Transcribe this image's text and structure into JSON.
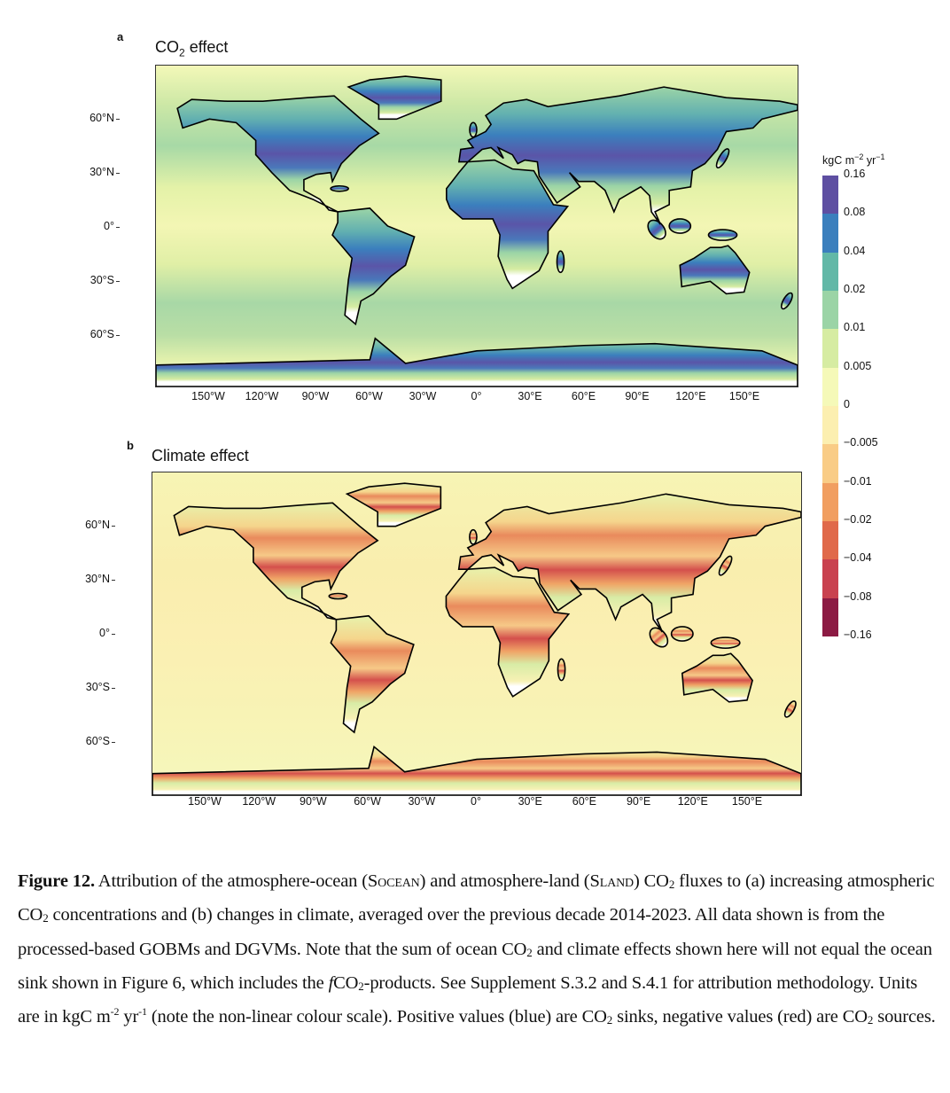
{
  "panel_a": {
    "letter": "a",
    "title_main": "CO",
    "title_sub": "2",
    "title_rest": " effect"
  },
  "panel_b": {
    "letter": "b",
    "title": "Climate effect"
  },
  "y_ticks": [
    "60°N",
    "30°N",
    "0°",
    "30°S",
    "60°S"
  ],
  "x_ticks": [
    "150°W",
    "120°W",
    "90°W",
    "60°W",
    "30°W",
    "0°",
    "30°E",
    "60°E",
    "90°E",
    "120°E",
    "150°E"
  ],
  "colorbar": {
    "unit_main": "kgC m",
    "unit_sup1": "−2",
    "unit_mid": " yr",
    "unit_sup2": "−1",
    "labels": [
      "0.16",
      "0.08",
      "0.04",
      "0.02",
      "0.01",
      "0.005",
      "0",
      "−0.005",
      "−0.01",
      "−0.02",
      "−0.04",
      "−0.08",
      "−0.16"
    ],
    "colors": [
      "#5e4fa2",
      "#3b7fbd",
      "#62b8a7",
      "#9bd4a6",
      "#d6eca2",
      "#f5f9b8",
      "#fcefb0",
      "#f9cc86",
      "#f19e60",
      "#e0694a",
      "#c9414f",
      "#8c1a43"
    ]
  },
  "chart_data": [
    {
      "type": "heatmap",
      "title": "CO2 effect",
      "panel": "a",
      "projection": "equirectangular",
      "xlabel": "",
      "ylabel": "",
      "y_tick_labels": [
        "60°N",
        "30°N",
        "0°",
        "30°S",
        "60°S"
      ],
      "x_tick_labels": [
        "150°W",
        "120°W",
        "90°W",
        "60°W",
        "30°W",
        "0°",
        "30°E",
        "60°E",
        "90°E",
        "120°E",
        "150°E"
      ],
      "colorbar_levels": [
        0.16,
        0.08,
        0.04,
        0.02,
        0.01,
        0.005,
        0,
        -0.005,
        -0.01,
        -0.02,
        -0.04,
        -0.08,
        -0.16
      ],
      "unit": "kgC m-2 yr-1"
    },
    {
      "type": "heatmap",
      "title": "Climate effect",
      "panel": "b",
      "projection": "equirectangular",
      "xlabel": "",
      "ylabel": "",
      "y_tick_labels": [
        "60°N",
        "30°N",
        "0°",
        "30°S",
        "60°S"
      ],
      "x_tick_labels": [
        "150°W",
        "120°W",
        "90°W",
        "60°W",
        "30°W",
        "0°",
        "30°E",
        "60°E",
        "90°E",
        "120°E",
        "150°E"
      ],
      "colorbar_levels": [
        0.16,
        0.08,
        0.04,
        0.02,
        0.01,
        0.005,
        0,
        -0.005,
        -0.01,
        -0.02,
        -0.04,
        -0.08,
        -0.16
      ],
      "unit": "kgC m-2 yr-1"
    }
  ],
  "caption": [
    {
      "t": "Figure 12.",
      "s": "b"
    },
    {
      "t": " Attribution of the atmosphere-ocean (S"
    },
    {
      "t": "ocean",
      "s": "sc"
    },
    {
      "t": ") and atmosphere-land (S"
    },
    {
      "t": "land",
      "s": "sc"
    },
    {
      "t": ") CO"
    },
    {
      "t": "2",
      "s": "sub"
    },
    {
      "t": " fluxes to (a) increasing atmospheric CO"
    },
    {
      "t": "2",
      "s": "sub"
    },
    {
      "t": " concentrations and (b) changes in climate, averaged over the previous decade 2014-2023. All data shown is from the processed-based GOBMs and DGVMs. Note that the sum of ocean CO"
    },
    {
      "t": "2",
      "s": "sub"
    },
    {
      "t": " and climate effects shown here will not equal the ocean sink shown in Figure 6, which includes the "
    },
    {
      "t": "f",
      "s": "i"
    },
    {
      "t": "CO"
    },
    {
      "t": "2",
      "s": "sub"
    },
    {
      "t": "-products. See Supplement S.3.2 and S.4.1 for attribution methodology. Units are in kgC m"
    },
    {
      "t": "-2",
      "s": "sup"
    },
    {
      "t": " yr"
    },
    {
      "t": "-1",
      "s": "sup"
    },
    {
      "t": " (note the non-linear colour scale). Positive values (blue) are CO"
    },
    {
      "t": "2",
      "s": "sub"
    },
    {
      "t": " sinks, negative values (red) are CO"
    },
    {
      "t": "2",
      "s": "sub"
    },
    {
      "t": " sources."
    }
  ]
}
